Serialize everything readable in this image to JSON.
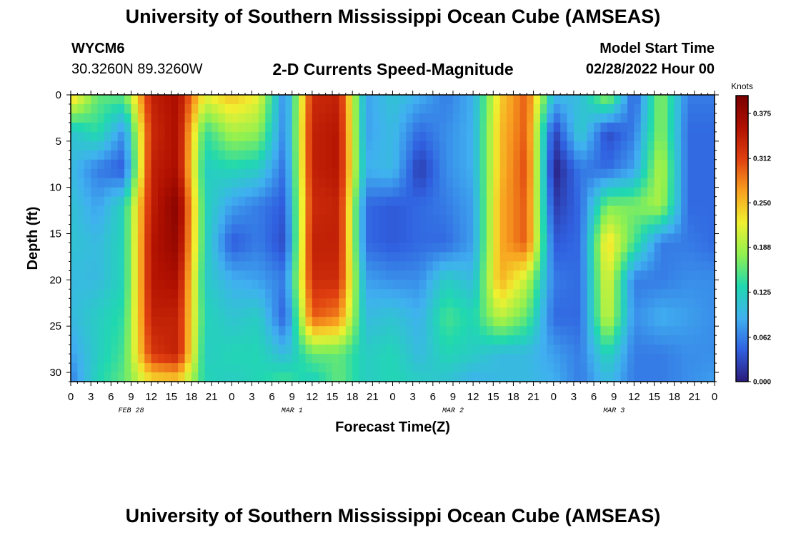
{
  "header": {
    "title": "University of Southern Mississippi Ocean Cube (AMSEAS)",
    "station_id": "WYCM6",
    "station_coords": "30.3260N  89.3260W",
    "chart_title": "2-D Currents Speed-Magnitude",
    "model_start_label": "Model Start Time",
    "model_start_value": "02/28/2022 Hour 00"
  },
  "footer": {
    "title": "University of Southern Mississippi Ocean Cube (AMSEAS)"
  },
  "chart_data": {
    "type": "heatmap",
    "title": "2-D Currents Speed-Magnitude",
    "xlabel": "Forecast Time(Z)",
    "ylabel": "Depth (ft)",
    "x_tick_labels": [
      "0",
      "3",
      "6",
      "9",
      "12",
      "15",
      "18",
      "21",
      "0",
      "3",
      "6",
      "9",
      "12",
      "15",
      "18",
      "21",
      "0",
      "3",
      "6",
      "9",
      "12",
      "15",
      "18",
      "21",
      "0",
      "3",
      "6",
      "9",
      "12",
      "15",
      "18",
      "21",
      "0"
    ],
    "date_labels": [
      {
        "label": "FEB 28",
        "hour": 9
      },
      {
        "label": "MAR 1",
        "hour": 33
      },
      {
        "label": "MAR 2",
        "hour": 57
      },
      {
        "label": "MAR 3",
        "hour": 81
      }
    ],
    "xlim_hours": [
      0,
      96
    ],
    "y_ticks": [
      0,
      5,
      10,
      15,
      20,
      25,
      30
    ],
    "ylim": [
      0,
      31
    ],
    "y_inverted": true,
    "colorbar": {
      "label": "Knots",
      "ticks": [
        "0.375",
        "0.312",
        "0.250",
        "0.188",
        "0.125",
        "0.062",
        "0.000"
      ],
      "range": [
        0,
        0.4
      ],
      "stops": [
        "#2a1a7a",
        "#3060e0",
        "#40b0f0",
        "#20d8b0",
        "#90f050",
        "#f0f030",
        "#f8a020",
        "#e04010",
        "#b01000",
        "#7a0000"
      ]
    },
    "grid": {
      "hours": [
        0,
        4,
        8,
        12,
        16,
        20,
        24,
        28,
        32,
        36,
        40,
        44,
        48,
        52,
        56,
        60,
        64,
        68,
        72,
        76,
        80,
        84,
        88,
        92,
        96
      ],
      "depths": [
        0,
        4,
        8,
        12,
        16,
        20,
        24,
        28,
        31
      ],
      "speed": [
        [
          0.25,
          0.16,
          0.16,
          0.34,
          0.36,
          0.22,
          0.25,
          0.22,
          0.06,
          0.33,
          0.34,
          0.08,
          0.11,
          0.09,
          0.06,
          0.09,
          0.24,
          0.3,
          0.1,
          0.1,
          0.19,
          0.04,
          0.18,
          0.06,
          0.06
        ],
        [
          0.11,
          0.14,
          0.07,
          0.33,
          0.36,
          0.14,
          0.19,
          0.18,
          0.06,
          0.34,
          0.35,
          0.08,
          0.1,
          0.05,
          0.07,
          0.09,
          0.25,
          0.3,
          0.02,
          0.12,
          0.03,
          0.06,
          0.18,
          0.05,
          0.05
        ],
        [
          0.1,
          0.06,
          0.04,
          0.34,
          0.36,
          0.12,
          0.13,
          0.12,
          0.05,
          0.34,
          0.35,
          0.09,
          0.1,
          0.02,
          0.07,
          0.09,
          0.25,
          0.31,
          0.0,
          0.06,
          0.05,
          0.08,
          0.2,
          0.05,
          0.05
        ],
        [
          0.11,
          0.08,
          0.13,
          0.34,
          0.39,
          0.13,
          0.08,
          0.06,
          0.04,
          0.33,
          0.34,
          0.05,
          0.04,
          0.05,
          0.06,
          0.08,
          0.26,
          0.3,
          0.02,
          0.05,
          0.17,
          0.17,
          0.19,
          0.05,
          0.05
        ],
        [
          0.11,
          0.1,
          0.13,
          0.35,
          0.38,
          0.13,
          0.04,
          0.06,
          0.03,
          0.34,
          0.34,
          0.05,
          0.04,
          0.05,
          0.05,
          0.08,
          0.26,
          0.3,
          0.04,
          0.05,
          0.24,
          0.15,
          0.06,
          0.06,
          0.05
        ],
        [
          0.1,
          0.1,
          0.13,
          0.35,
          0.36,
          0.12,
          0.09,
          0.08,
          0.06,
          0.33,
          0.33,
          0.08,
          0.07,
          0.07,
          0.12,
          0.1,
          0.26,
          0.2,
          0.06,
          0.05,
          0.22,
          0.06,
          0.06,
          0.07,
          0.07
        ],
        [
          0.1,
          0.12,
          0.14,
          0.34,
          0.34,
          0.13,
          0.11,
          0.12,
          0.04,
          0.3,
          0.28,
          0.1,
          0.11,
          0.09,
          0.15,
          0.13,
          0.2,
          0.16,
          0.05,
          0.05,
          0.21,
          0.07,
          0.09,
          0.08,
          0.07
        ],
        [
          0.08,
          0.12,
          0.15,
          0.32,
          0.34,
          0.12,
          0.13,
          0.13,
          0.1,
          0.16,
          0.16,
          0.12,
          0.13,
          0.1,
          0.13,
          0.12,
          0.1,
          0.1,
          0.08,
          0.06,
          0.13,
          0.06,
          0.06,
          0.07,
          0.07
        ],
        [
          0.06,
          0.13,
          0.16,
          0.23,
          0.24,
          0.13,
          0.12,
          0.13,
          0.15,
          0.12,
          0.16,
          0.12,
          0.13,
          0.12,
          0.11,
          0.09,
          0.1,
          0.1,
          0.09,
          0.06,
          0.1,
          0.06,
          0.06,
          0.07,
          0.08
        ]
      ]
    }
  }
}
